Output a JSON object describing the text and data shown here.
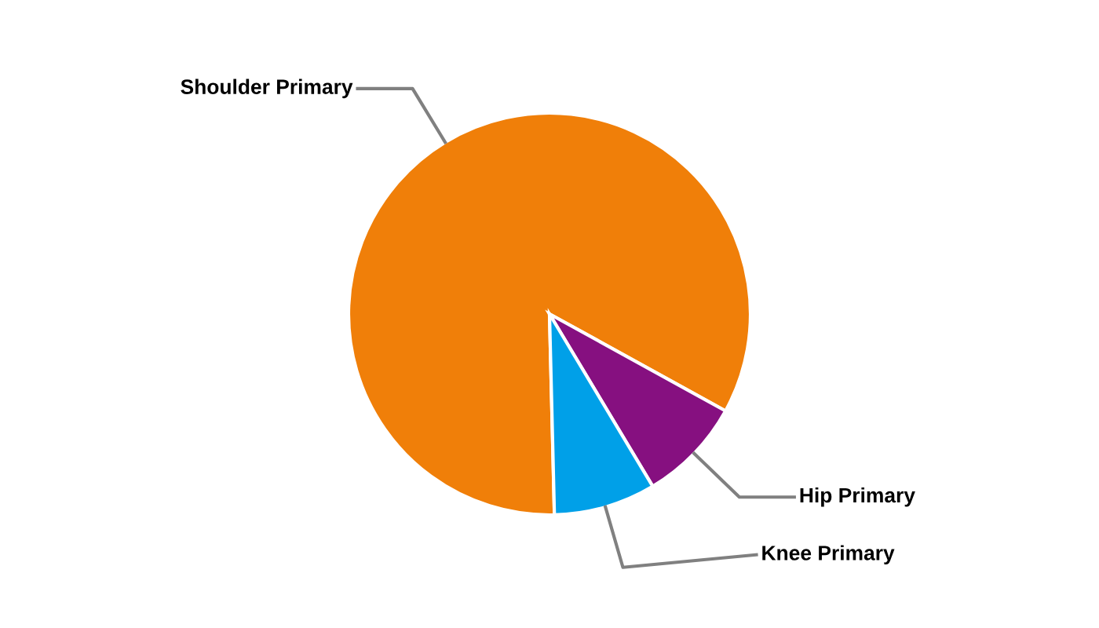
{
  "chart_data": {
    "type": "pie",
    "categories": [
      "Shoulder Primary",
      "Hip Primary",
      "Knee Primary"
    ],
    "values": [
      83.4,
      8.4,
      8.2
    ],
    "colors": [
      "#f07f09",
      "#861080",
      "#00a0e8"
    ],
    "legend": false
  }
}
